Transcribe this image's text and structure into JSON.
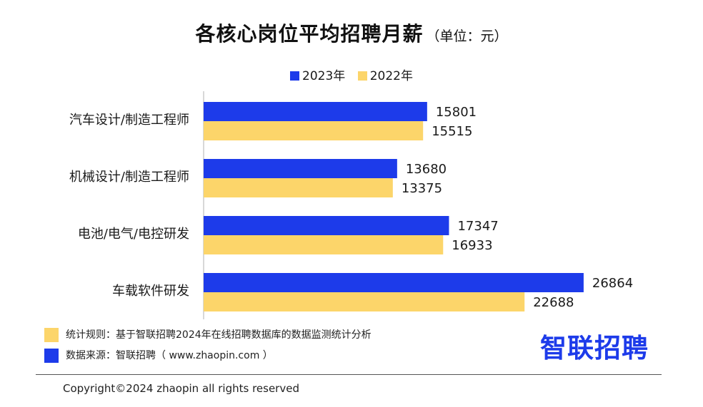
{
  "title": "各核心岗位平均招聘月薪",
  "unit": "（单位：元）",
  "chart_data": {
    "type": "bar",
    "orientation": "horizontal",
    "categories": [
      "汽车设计/制造工程师",
      "机械设计/制造工程师",
      "电池/电气/电控研发",
      "车载软件研发"
    ],
    "series": [
      {
        "name": "2023年",
        "values": [
          15801,
          13680,
          17347,
          26864
        ],
        "color": "#1d3bea"
      },
      {
        "name": "2022年",
        "values": [
          15515,
          13375,
          16933,
          22688
        ],
        "color": "#fcd56a"
      }
    ],
    "xlim": [
      0,
      30000
    ],
    "grid": false,
    "legend": "top"
  },
  "notes": [
    {
      "text": "统计规则：基于智联招聘2024年在线招聘数据库的数据监测统计分析",
      "color": "#fcd56a"
    },
    {
      "text": "数据来源：智联招聘（ www.zhaopin.com ）",
      "color": "#1d3bea"
    }
  ],
  "logo": "智联招聘",
  "copyright": "Copyright©2024 zhaopin all rights reserved"
}
